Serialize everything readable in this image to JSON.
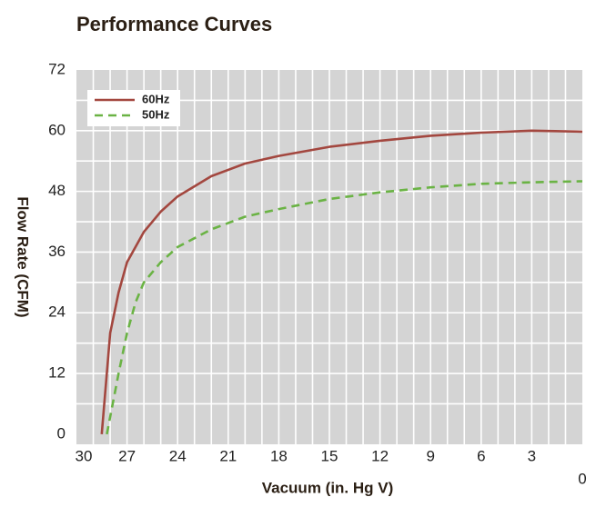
{
  "chart_data": {
    "type": "line",
    "title": "Performance Curves",
    "x_label": "Vacuum (in. Hg V)",
    "y_label": "Flow Rate (CFM)",
    "xlim": [
      30,
      0
    ],
    "ylim": [
      -2,
      72
    ],
    "xticks": [
      30,
      27,
      24,
      21,
      18,
      15,
      12,
      9,
      6,
      3,
      0
    ],
    "yticks": [
      0,
      12,
      24,
      36,
      48,
      60,
      72
    ],
    "x_grid": [
      29,
      28,
      26,
      25,
      23,
      22,
      20,
      19,
      17,
      16,
      14,
      13,
      11,
      10,
      8,
      7,
      5,
      4,
      2,
      1
    ],
    "y_grid": [
      6,
      18,
      30,
      42,
      54,
      66
    ],
    "grid": true,
    "legend": "upper left",
    "series": [
      {
        "name": "60Hz",
        "color": "#a3473f",
        "style": "solid",
        "x": [
          28.5,
          28,
          27.5,
          27,
          26,
          25,
          24,
          22,
          20,
          18,
          15,
          12,
          9,
          6,
          3,
          0
        ],
        "values": [
          0,
          20,
          28,
          34,
          40,
          44,
          47,
          51,
          53.5,
          55,
          56.8,
          58,
          59,
          59.6,
          60,
          59.8
        ]
      },
      {
        "name": "50Hz",
        "color": "#6ab344",
        "style": "dashed",
        "x": [
          28.2,
          27.5,
          27,
          26.5,
          26,
          25,
          24,
          22,
          20,
          18,
          15,
          12,
          9,
          6,
          3,
          0
        ],
        "values": [
          0,
          12,
          20,
          26,
          30,
          34,
          37,
          40.5,
          43,
          44.5,
          46.5,
          47.8,
          48.8,
          49.5,
          49.8,
          50
        ]
      }
    ]
  }
}
